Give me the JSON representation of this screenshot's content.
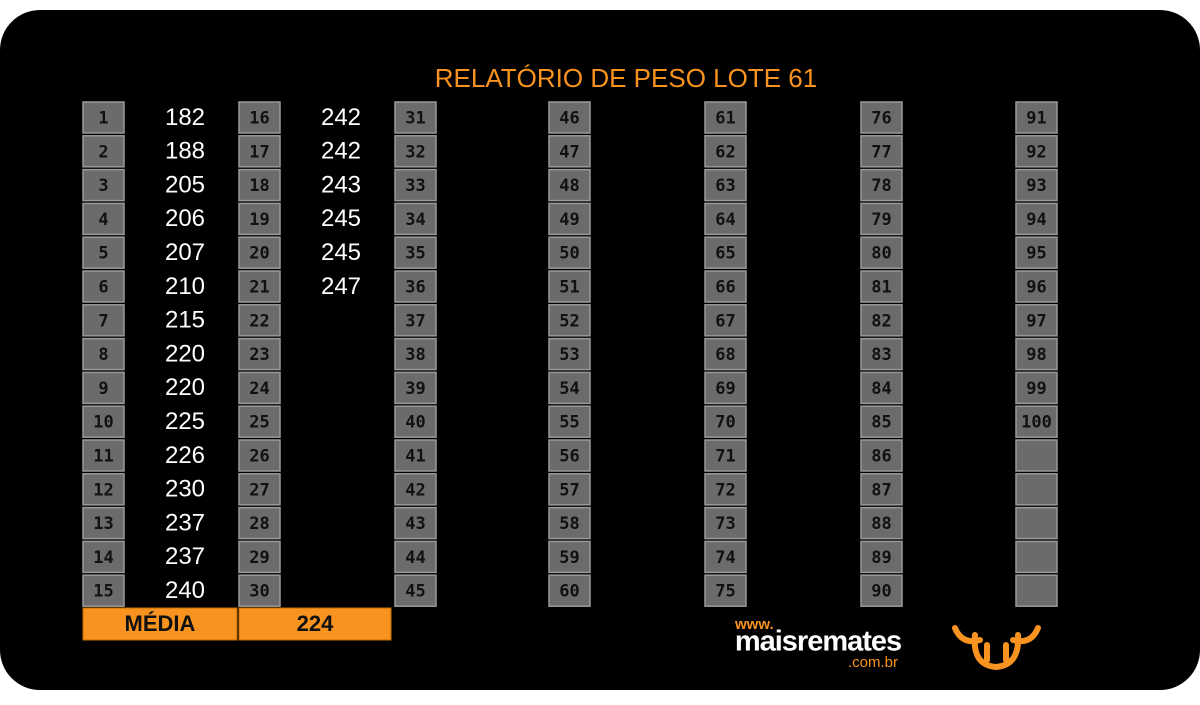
{
  "title": "RELATÓRIO DE PESO LOTE 61",
  "entries": [
    {
      "number": 1,
      "weight": 182
    },
    {
      "number": 2,
      "weight": 188
    },
    {
      "number": 3,
      "weight": 205
    },
    {
      "number": 4,
      "weight": 206
    },
    {
      "number": 5,
      "weight": 207
    },
    {
      "number": 6,
      "weight": 210
    },
    {
      "number": 7,
      "weight": 215
    },
    {
      "number": 8,
      "weight": 220
    },
    {
      "number": 9,
      "weight": 220
    },
    {
      "number": 10,
      "weight": 225
    },
    {
      "number": 11,
      "weight": 226
    },
    {
      "number": 12,
      "weight": 230
    },
    {
      "number": 13,
      "weight": 237
    },
    {
      "number": 14,
      "weight": 237
    },
    {
      "number": 15,
      "weight": 240
    },
    {
      "number": 16,
      "weight": 242
    },
    {
      "number": 17,
      "weight": 242
    },
    {
      "number": 18,
      "weight": 243
    },
    {
      "number": 19,
      "weight": 245
    },
    {
      "number": 20,
      "weight": 245
    },
    {
      "number": 21,
      "weight": 247
    },
    {
      "number": 22
    },
    {
      "number": 23
    },
    {
      "number": 24
    },
    {
      "number": 25
    },
    {
      "number": 26
    },
    {
      "number": 27
    },
    {
      "number": 28
    },
    {
      "number": 29
    },
    {
      "number": 30
    },
    {
      "number": 31
    },
    {
      "number": 32
    },
    {
      "number": 33
    },
    {
      "number": 34
    },
    {
      "number": 35
    },
    {
      "number": 36
    },
    {
      "number": 37
    },
    {
      "number": 38
    },
    {
      "number": 39
    },
    {
      "number": 40
    },
    {
      "number": 41
    },
    {
      "number": 42
    },
    {
      "number": 43
    },
    {
      "number": 44
    },
    {
      "number": 45
    },
    {
      "number": 46
    },
    {
      "number": 47
    },
    {
      "number": 48
    },
    {
      "number": 49
    },
    {
      "number": 50
    },
    {
      "number": 51
    },
    {
      "number": 52
    },
    {
      "number": 53
    },
    {
      "number": 54
    },
    {
      "number": 55
    },
    {
      "number": 56
    },
    {
      "number": 57
    },
    {
      "number": 58
    },
    {
      "number": 59
    },
    {
      "number": 60
    },
    {
      "number": 61
    },
    {
      "number": 62
    },
    {
      "number": 63
    },
    {
      "number": 64
    },
    {
      "number": 65
    },
    {
      "number": 66
    },
    {
      "number": 67
    },
    {
      "number": 68
    },
    {
      "number": 69
    },
    {
      "number": 70
    },
    {
      "number": 71
    },
    {
      "number": 72
    },
    {
      "number": 73
    },
    {
      "number": 74
    },
    {
      "number": 75
    },
    {
      "number": 76
    },
    {
      "number": 77
    },
    {
      "number": 78
    },
    {
      "number": 79
    },
    {
      "number": 80
    },
    {
      "number": 81
    },
    {
      "number": 82
    },
    {
      "number": 83
    },
    {
      "number": 84
    },
    {
      "number": 85
    },
    {
      "number": 86
    },
    {
      "number": 87
    },
    {
      "number": 88
    },
    {
      "number": 89
    },
    {
      "number": 90
    },
    {
      "number": 91
    },
    {
      "number": 92
    },
    {
      "number": 93
    },
    {
      "number": 94
    },
    {
      "number": 95
    },
    {
      "number": 96
    },
    {
      "number": 97
    },
    {
      "number": 98
    },
    {
      "number": 99
    },
    {
      "number": 100
    }
  ],
  "average": {
    "label": "MÉDIA",
    "value": 224
  },
  "logo": {
    "prefix": "www.",
    "name": "maisremates",
    "suffix": ".com.br"
  }
}
